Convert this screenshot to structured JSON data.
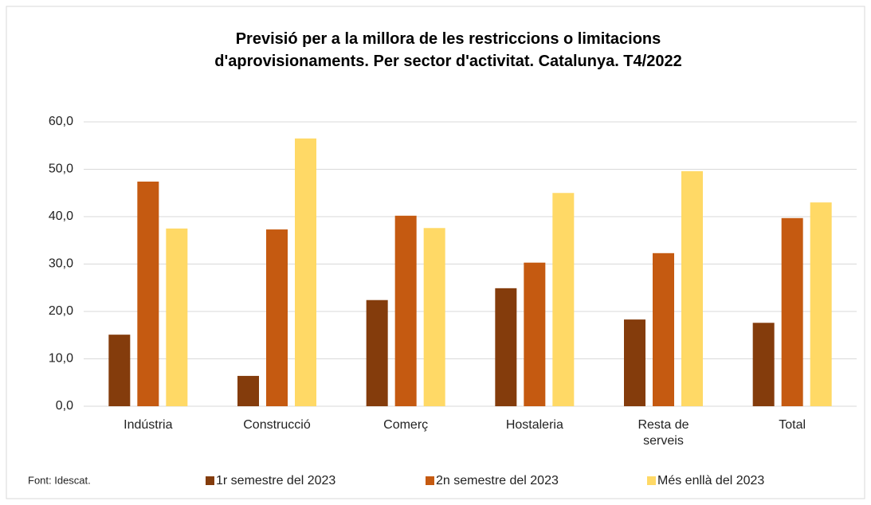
{
  "chart_data": {
    "type": "bar",
    "title": "Previsió per a la millora de les restriccions o limitacions d'aprovisionaments. Per sector d'activitat. Catalunya. T4/2022",
    "categories": [
      "Indústria",
      "Construcció",
      "Comerç",
      "Hostaleria",
      "Resta de serveis",
      "Total"
    ],
    "series": [
      {
        "name": "1r semestre del 2023",
        "color": "#843c0c",
        "values": [
          15.1,
          6.4,
          22.4,
          24.9,
          18.3,
          17.6
        ]
      },
      {
        "name": "2n semestre del 2023",
        "color": "#c55a11",
        "values": [
          47.4,
          37.3,
          40.2,
          30.3,
          32.3,
          39.7
        ]
      },
      {
        "name": "Més enllà del 2023",
        "color": "#ffd966",
        "values": [
          37.5,
          56.5,
          37.6,
          45.0,
          49.6,
          43.0
        ]
      }
    ],
    "ylim": [
      0,
      60
    ],
    "yticks": [
      {
        "value": 0,
        "label": "0,0"
      },
      {
        "value": 10,
        "label": "10,0"
      },
      {
        "value": 20,
        "label": "20,0"
      },
      {
        "value": 30,
        "label": "30,0"
      },
      {
        "value": 40,
        "label": "40,0"
      },
      {
        "value": 50,
        "label": "50,0"
      },
      {
        "value": 60,
        "label": "60,0"
      }
    ],
    "grid": true,
    "legend": "bottom",
    "source": "Font: Idescat."
  }
}
